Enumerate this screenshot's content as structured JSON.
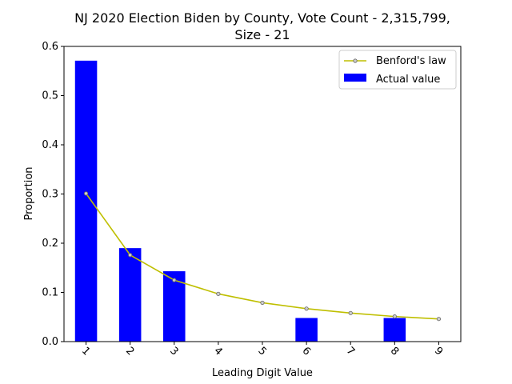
{
  "chart_data": {
    "type": "bar",
    "title_line1": "NJ 2020 Election Biden by County,  Vote Count - 2,315,799,",
    "title_line2": "Size - 21",
    "xlabel": "Leading Digit Value",
    "ylabel": "Proportion",
    "categories": [
      "1",
      "2",
      "3",
      "4",
      "5",
      "6",
      "7",
      "8",
      "9"
    ],
    "ylim": [
      0,
      0.6
    ],
    "yticks": [
      "0.0",
      "0.1",
      "0.2",
      "0.3",
      "0.4",
      "0.5",
      "0.6"
    ],
    "series": [
      {
        "name": "Actual value",
        "kind": "bar",
        "color": "#0000ff",
        "values": [
          0.571,
          0.19,
          0.143,
          0,
          0,
          0.048,
          0,
          0.048,
          0
        ]
      },
      {
        "name": "Benford's law",
        "kind": "line",
        "color": "#bfbf00",
        "values": [
          0.301,
          0.176,
          0.125,
          0.097,
          0.079,
          0.067,
          0.058,
          0.051,
          0.046
        ]
      }
    ],
    "legend_position": "top-right",
    "grid": false
  }
}
